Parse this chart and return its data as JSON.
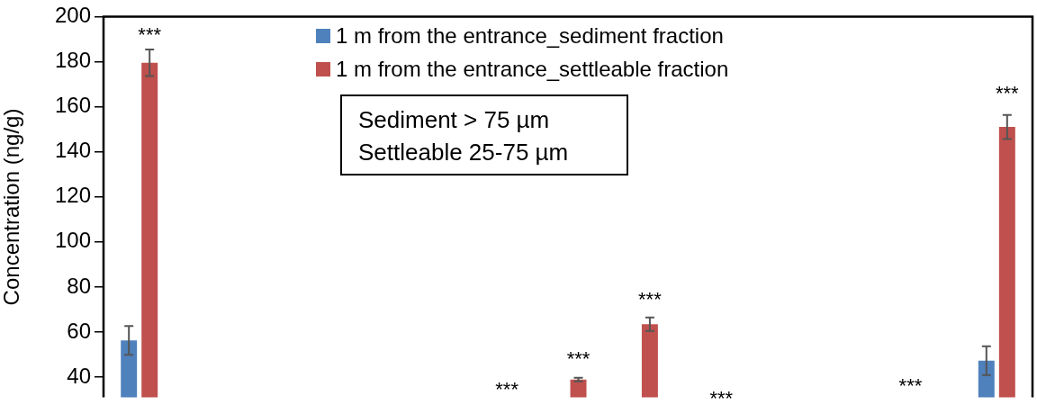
{
  "chart_data": {
    "type": "bar",
    "ylabel": "Concentration (ng/g)",
    "categories": [
      null,
      null,
      null,
      null,
      null,
      null,
      null,
      null,
      null,
      null,
      null,
      null,
      null
    ],
    "series": [
      {
        "name": "1 m from the entrance_sediment fraction",
        "color": "#4f81bd",
        "values": [
          56.3,
          null,
          null,
          null,
          null,
          null,
          null,
          null,
          null,
          null,
          null,
          null,
          47.3
        ],
        "errors": [
          6.4,
          null,
          null,
          null,
          null,
          null,
          null,
          null,
          null,
          null,
          null,
          null,
          6.4
        ]
      },
      {
        "name": "1 m from the entrance_settleable fraction",
        "color": "#c0504d",
        "values": [
          179.5,
          null,
          null,
          null,
          null,
          null,
          38.9,
          63.5,
          null,
          null,
          null,
          null,
          151
        ],
        "errors": [
          5.9,
          null,
          null,
          null,
          null,
          null,
          0.8,
          3,
          null,
          null,
          null,
          null,
          5.3
        ]
      }
    ],
    "ylim": [
      31,
      200
    ],
    "yticks": [
      40,
      60,
      80,
      100,
      120,
      140,
      160,
      180,
      200
    ],
    "grid": false,
    "legend": "top",
    "annotations": [
      "Sediment > 75 µm",
      "Settleable 25-75 µm",
      "***",
      "***",
      "***",
      "***",
      "***",
      "***",
      "***"
    ]
  }
}
